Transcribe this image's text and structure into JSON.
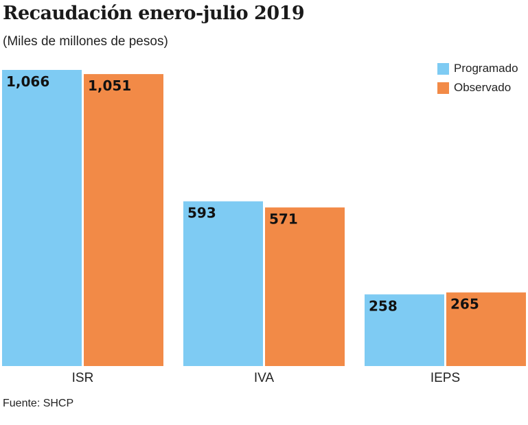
{
  "chart_data": {
    "type": "bar",
    "title": "Recaudación enero-julio 2019",
    "subtitle": "(Miles de millones de pesos)",
    "categories": [
      "ISR",
      "IVA",
      "IEPS"
    ],
    "series": [
      {
        "name": "Programado",
        "color": "#7ecbf3",
        "values": [
          1066,
          593,
          258
        ],
        "labels": [
          "1,066",
          "593",
          "258"
        ]
      },
      {
        "name": "Observado",
        "color": "#f28a47",
        "values": [
          1051,
          571,
          265
        ],
        "labels": [
          "1,051",
          "571",
          "265"
        ]
      }
    ],
    "xlabel": "",
    "ylabel": "",
    "ylim": [
      0,
      1066
    ],
    "grid": false,
    "legend_position": "top-right",
    "source": "Fuente: SHCP"
  }
}
